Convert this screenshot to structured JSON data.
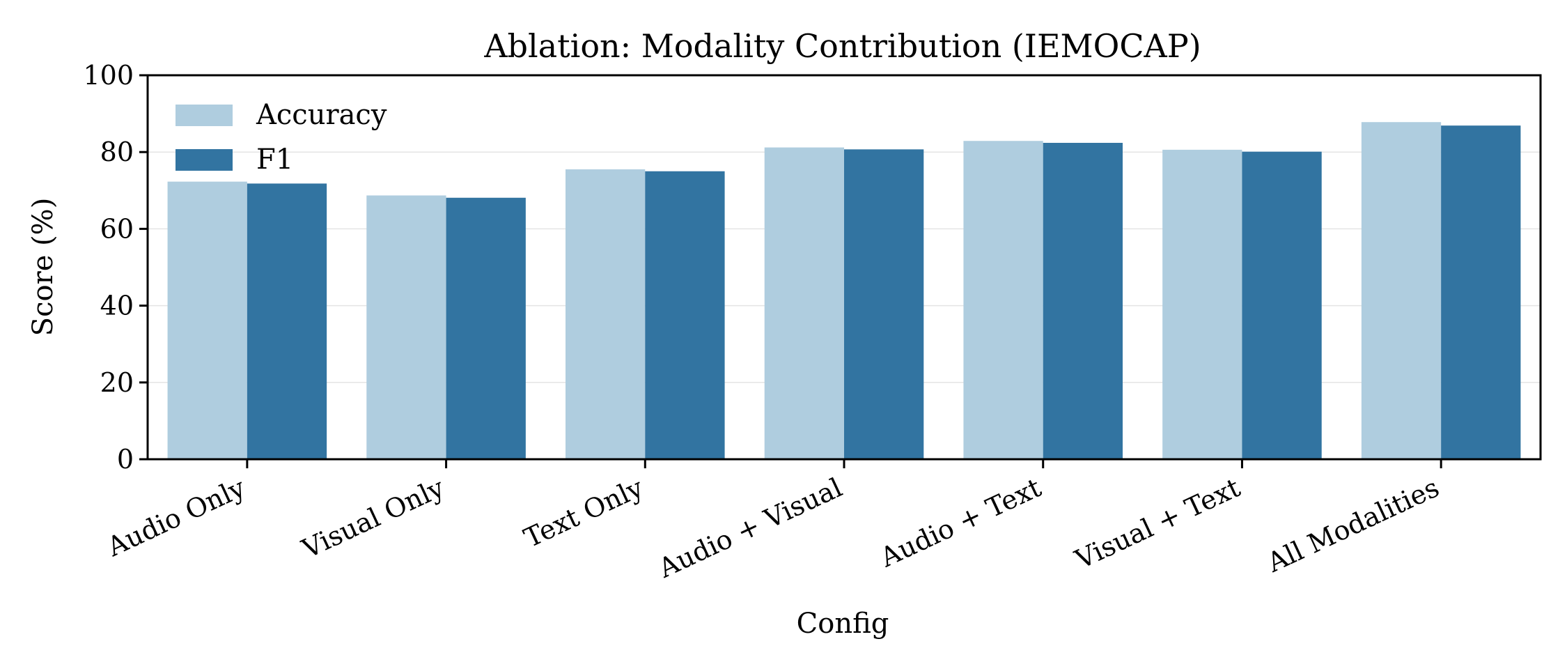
{
  "chart_data": {
    "type": "bar",
    "title": "Ablation: Modality Contribution (IEMOCAP)",
    "xlabel": "Config",
    "ylabel": "Score (%)",
    "ylim": [
      0,
      100
    ],
    "yticks": [
      0,
      20,
      40,
      60,
      80,
      100
    ],
    "grid": "y",
    "legend_position": "top-left",
    "categories": [
      "Audio Only",
      "Visual Only",
      "Text Only",
      "Audio + Visual",
      "Audio + Text",
      "Visual + Text",
      "All Modalities"
    ],
    "series": [
      {
        "name": "Accuracy",
        "color": "#afcddf",
        "values": [
          72.3,
          68.7,
          75.5,
          81.2,
          82.9,
          80.6,
          87.8
        ]
      },
      {
        "name": "F1",
        "color": "#3274a1",
        "values": [
          71.8,
          68.1,
          75.0,
          80.7,
          82.4,
          80.1,
          86.9
        ]
      }
    ]
  }
}
